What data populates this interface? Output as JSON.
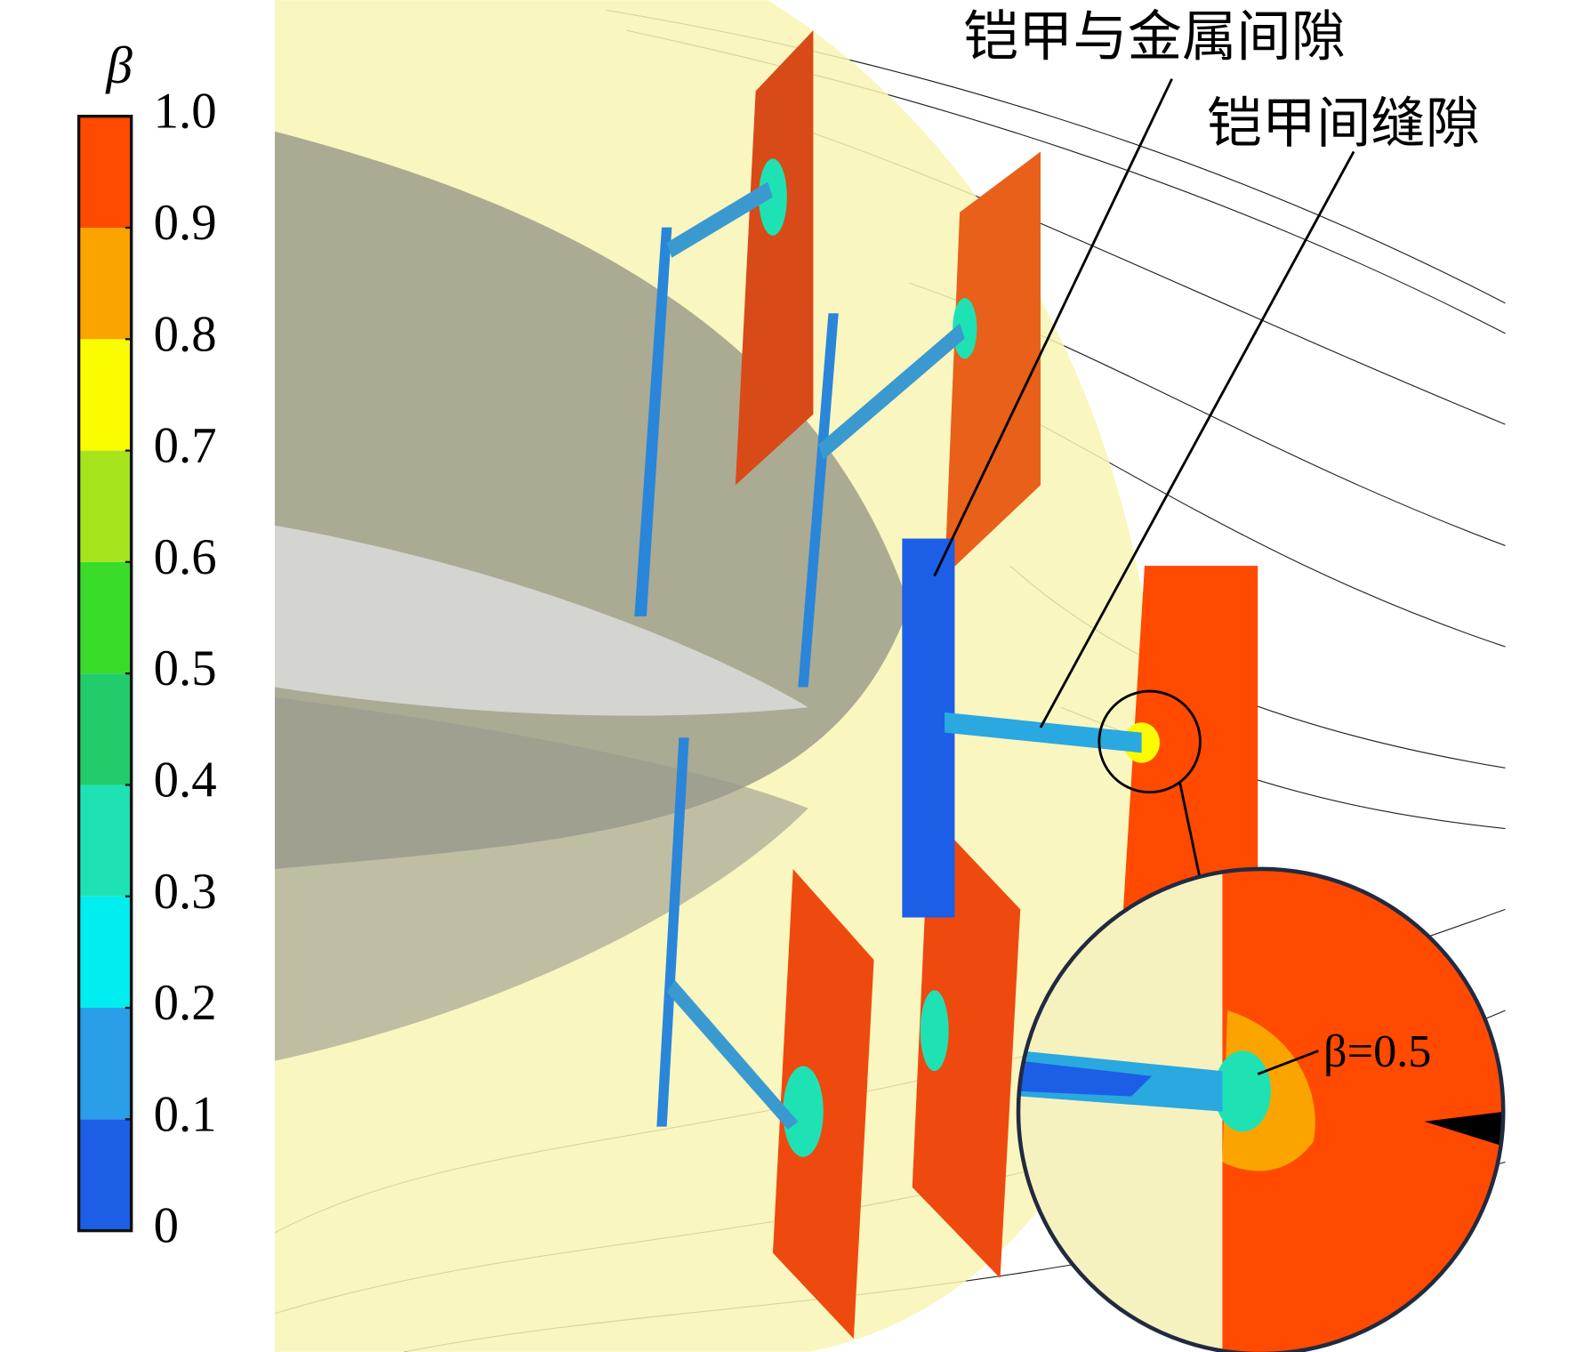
{
  "chart_data": {
    "type": "contour",
    "colorbar_label": "β",
    "yticks": [
      0,
      0.1,
      0.2,
      0.3,
      0.4,
      0.5,
      0.6,
      0.7,
      0.8,
      0.9,
      {
        "value": 1,
        "label": "1.0"
      }
    ],
    "ylim": [
      0,
      1
    ],
    "colors": [
      "#1c5ee6",
      "#2a9ee8",
      "#00eef0",
      "#1fe2b4",
      "#23cc6a",
      "#3adc2a",
      "#a6e41e",
      "#fcfc00",
      "#fba400",
      "#ff4a00"
    ],
    "annotations": [
      "铠甲与金属间隙",
      "铠甲间缝隙",
      "β=0.5"
    ]
  }
}
